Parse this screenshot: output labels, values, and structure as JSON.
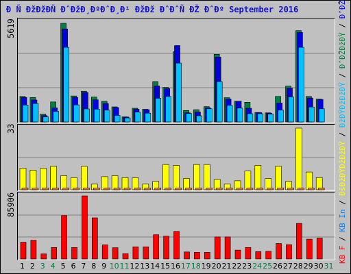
{
  "title": "Ð Ñ ÐžÐžÐÑ ÐˆÐžÐ¸ÐºÐˆÐ¸Ð¹ ÐžÐž ÐˆÐˆÑ ÐŽ ÐˆÐº September 2016",
  "y_max": {
    "pages": "5619",
    "files": "33",
    "kb": "85906"
  },
  "legend": {
    "kb": {
      "text": "KB F",
      "color": "#ff0000"
    },
    "sep1": {
      "text": " / ",
      "color": "#000000"
    },
    "kbin": {
      "text": "KB In",
      "color": "#0080ff"
    },
    "sep2": {
      "text": " / ",
      "color": "#000000"
    },
    "files": {
      "text": "ÐšÐžÐŸÐžÐžÐŸ",
      "color": "#ffff00"
    },
    "sep3": {
      "text": " / ",
      "color": "#000000"
    },
    "pages": {
      "text": "ÐžÐŸÐžÐžÐŸ",
      "color": "#00c0ff"
    },
    "sep4": {
      "text": " / ",
      "color": "#000000"
    },
    "hits": {
      "text": "ÐˆÐŽÐžÐŸ",
      "color": "#008040"
    },
    "sep5": {
      "text": " / ",
      "color": "#000000"
    },
    "visits": {
      "text": "ÐˆÐŽÐŽÐÐÐ",
      "color": "#0000ff"
    }
  },
  "colors": {
    "hits": "#008040",
    "files": "#0000e0",
    "pages": "#00c0ff",
    "visits": "#ffff00",
    "sites": "#ff8000",
    "kbytes": "#ff0000",
    "weekday_label": "#000000",
    "weekend_label": "#008040"
  },
  "chart_data": {
    "type": "bar",
    "categories": [
      "1",
      "2",
      "3",
      "4",
      "5",
      "6",
      "7",
      "8",
      "9",
      "10",
      "11",
      "12",
      "13",
      "14",
      "15",
      "16",
      "17",
      "18",
      "19",
      "20",
      "21",
      "22",
      "23",
      "24",
      "25",
      "26",
      "27",
      "28",
      "29",
      "30",
      "31"
    ],
    "weekend": [
      false,
      false,
      true,
      true,
      false,
      false,
      false,
      false,
      false,
      true,
      true,
      false,
      false,
      false,
      false,
      false,
      true,
      true,
      false,
      false,
      false,
      false,
      false,
      true,
      true,
      false,
      false,
      false,
      false,
      false,
      true
    ],
    "y_max": {
      "pages": 5619,
      "files": 33,
      "kb": 85906
    },
    "series": [
      {
        "values": [
          1450,
          1390,
          450,
          1140,
          5619,
          1480,
          1750,
          1420,
          1180,
          860,
          290,
          780,
          720,
          2300,
          1970,
          4000,
          650,
          700,
          870,
          3850,
          1380,
          1180,
          1120,
          540,
          520,
          1450,
          2040,
          5200,
          1450,
          1300,
          0
        ]
      },
      {
        "values": [
          1390,
          1250,
          360,
          800,
          5300,
          1400,
          1680,
          1260,
          1050,
          820,
          280,
          720,
          700,
          2050,
          1900,
          4350,
          520,
          560,
          800,
          3700,
          1300,
          1180,
          780,
          530,
          500,
          1080,
          1930,
          5100,
          1360,
          1280,
          0
        ]
      },
      {
        "values": [
          960,
          1050,
          290,
          600,
          4250,
          970,
          740,
          730,
          670,
          370,
          230,
          560,
          500,
          1350,
          1450,
          3350,
          480,
          350,
          750,
          2300,
          940,
          790,
          470,
          470,
          450,
          670,
          1430,
          4250,
          850,
          750,
          0
        ]
      },
      {
        "values": [
          11.5,
          10.5,
          11.5,
          12.5,
          7.5,
          6.5,
          12.5,
          3,
          7,
          7.5,
          6.5,
          6.5,
          3,
          4.5,
          13.5,
          13,
          6,
          13.5,
          13.5,
          5.5,
          3,
          4.8,
          10,
          13,
          6,
          12.5,
          4.5,
          33,
          9.5,
          6.5,
          0
        ]
      },
      {
        "values": [
          0.2,
          0.2,
          0.2,
          0.2,
          0.2,
          0.2,
          0.2,
          0.2,
          0.2,
          0.2,
          0.2,
          0.2,
          0.2,
          0.2,
          0.2,
          0.2,
          0.2,
          0.2,
          0.2,
          0.2,
          0.2,
          0.2,
          0.2,
          0.2,
          0.2,
          0.2,
          0.2,
          0.2,
          0.2,
          0.2,
          0
        ]
      },
      {
        "values": [
          22800,
          25500,
          6800,
          15600,
          59000,
          15600,
          85906,
          56000,
          19200,
          15300,
          7200,
          16500,
          16500,
          33000,
          31000,
          37500,
          9500,
          9000,
          9000,
          30000,
          30000,
          12000,
          15600,
          10000,
          10500,
          21000,
          19500,
          48500,
          27000,
          28500,
          0
        ]
      }
    ]
  }
}
